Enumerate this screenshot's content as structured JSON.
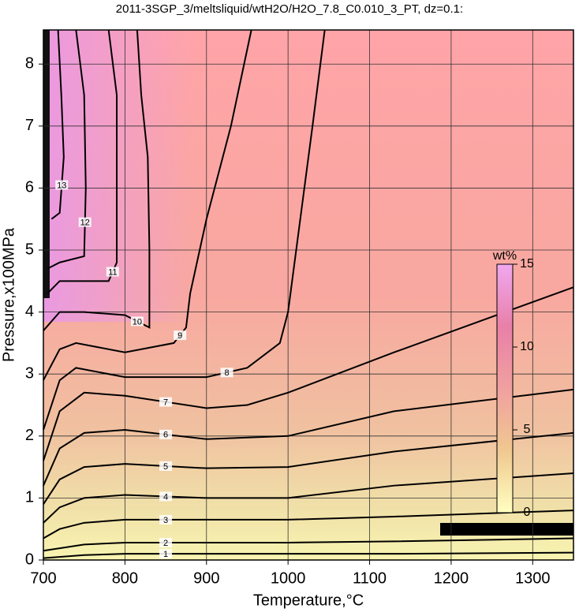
{
  "chart_data": {
    "type": "contour",
    "title": "2011-3SGP_3/meltsliquid/wtH2O/H2O_7.8_C0.010_3_PT, dz=0.1:",
    "x_label": "Temperature,°C",
    "y_label": "Pressure,x100MPa",
    "xlim": [
      700,
      1350
    ],
    "ylim": [
      0,
      8.55
    ],
    "xticks": [
      700,
      800,
      900,
      1000,
      1100,
      1200,
      1300
    ],
    "yticks": [
      0,
      1,
      2,
      3,
      4,
      5,
      6,
      7,
      8
    ],
    "grid": true,
    "line_color": "#000000",
    "series": [
      {
        "name": "1",
        "x": [
          700,
          750,
          800,
          900,
          1000,
          1130,
          1350
        ],
        "values": [
          0.03,
          0.08,
          0.1,
          0.1,
          0.1,
          0.1,
          0.12
        ]
      },
      {
        "name": "2",
        "x": [
          700,
          750,
          800,
          900,
          1000,
          1130,
          1350
        ],
        "values": [
          0.15,
          0.25,
          0.28,
          0.28,
          0.28,
          0.3,
          0.35
        ]
      },
      {
        "name": "3",
        "x": [
          700,
          720,
          750,
          800,
          900,
          1000,
          1130,
          1350
        ],
        "values": [
          0.35,
          0.5,
          0.6,
          0.65,
          0.65,
          0.65,
          0.7,
          0.8
        ]
      },
      {
        "name": "4",
        "x": [
          700,
          720,
          750,
          800,
          900,
          1000,
          1130,
          1350
        ],
        "values": [
          0.6,
          0.85,
          1.0,
          1.05,
          1.0,
          1.0,
          1.2,
          1.4
        ]
      },
      {
        "name": "5",
        "x": [
          700,
          720,
          750,
          800,
          900,
          1000,
          1130,
          1350
        ],
        "values": [
          0.9,
          1.3,
          1.5,
          1.55,
          1.48,
          1.5,
          1.75,
          2.05
        ]
      },
      {
        "name": "6",
        "x": [
          700,
          720,
          750,
          800,
          900,
          1000,
          1130,
          1350
        ],
        "values": [
          1.2,
          1.8,
          2.05,
          2.1,
          1.95,
          2.0,
          2.4,
          2.75
        ]
      },
      {
        "name": "7",
        "x": [
          700,
          720,
          750,
          800,
          900,
          950,
          1000,
          1130,
          1350
        ],
        "values": [
          1.6,
          2.4,
          2.7,
          2.65,
          2.45,
          2.5,
          2.7,
          3.35,
          4.4
        ]
      },
      {
        "name": "8",
        "x": [
          700,
          720,
          740,
          800,
          900,
          950,
          990,
          1000,
          1010,
          1030,
          1045
        ],
        "values": [
          2.1,
          2.9,
          3.1,
          2.95,
          2.95,
          3.1,
          3.5,
          4.0,
          5.0,
          7.0,
          8.55
        ]
      },
      {
        "name": "9",
        "x": [
          700,
          720,
          740,
          800,
          860,
          875,
          880,
          900,
          930,
          955
        ],
        "values": [
          2.9,
          3.4,
          3.5,
          3.35,
          3.5,
          3.75,
          4.3,
          5.5,
          7.0,
          8.55
        ]
      },
      {
        "name": "10",
        "x": [
          700,
          720,
          750,
          800,
          830,
          830,
          828,
          820,
          815
        ],
        "values": [
          3.7,
          4.0,
          4.0,
          3.95,
          3.75,
          5.0,
          6.5,
          7.5,
          8.55
        ]
      },
      {
        "name": "11",
        "x": [
          705,
          720,
          780,
          790,
          790,
          780
        ],
        "values": [
          4.3,
          4.5,
          4.5,
          4.8,
          7.5,
          8.55
        ]
      },
      {
        "name": "12",
        "x": [
          705,
          720,
          750,
          752,
          750,
          740
        ],
        "values": [
          4.7,
          4.8,
          4.9,
          6.0,
          7.5,
          8.55
        ]
      },
      {
        "name": "13",
        "x": [
          710,
          720,
          725,
          722,
          718
        ],
        "values": [
          5.5,
          5.6,
          6.5,
          7.5,
          8.55
        ]
      }
    ],
    "colorbar": {
      "label": "wt%",
      "lim": [
        0,
        15
      ],
      "ticks": [
        0,
        5,
        10,
        15
      ],
      "colors": [
        "#ffffc0",
        "#f0c890",
        "#f0a0a0",
        "#e880a8",
        "#f0a8f0"
      ]
    }
  }
}
